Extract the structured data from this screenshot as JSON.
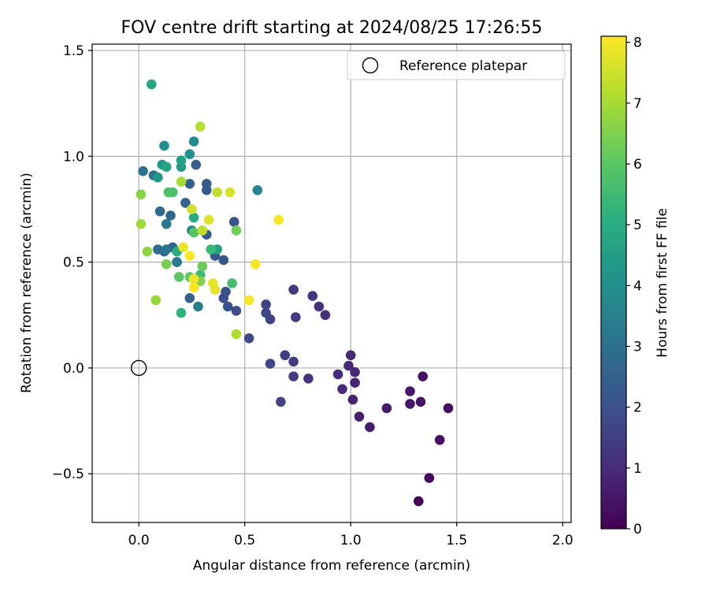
{
  "chart_data": {
    "type": "scatter",
    "title": "FOV centre drift starting at 2024/08/25 17:26:55",
    "xlabel": "Angular distance from reference (arcmin)",
    "ylabel": "Rotation from reference (arcmin)",
    "xlim": [
      -0.22,
      2.04
    ],
    "ylim": [
      -0.73,
      1.53
    ],
    "xticks": [
      0.0,
      0.5,
      1.0,
      1.5,
      2.0
    ],
    "xtick_labels": [
      "0.0",
      "0.5",
      "1.0",
      "1.5",
      "2.0"
    ],
    "yticks": [
      -0.5,
      0.0,
      0.5,
      1.0,
      1.5
    ],
    "ytick_labels": [
      "−0.5",
      "0.0",
      "0.5",
      "1.0",
      "1.5"
    ],
    "grid": true,
    "legend": {
      "location": "top-right",
      "entries": [
        "Reference platepar"
      ]
    },
    "reference_point": {
      "x": 0.0,
      "y": 0.0,
      "marker": "open-circle"
    },
    "colorbar": {
      "label": "Hours from first FF file",
      "colormap": "viridis",
      "range": [
        0,
        8.1
      ],
      "ticks": [
        0,
        1,
        2,
        3,
        4,
        5,
        6,
        7,
        8
      ],
      "tick_labels": [
        "0",
        "1",
        "2",
        "3",
        "4",
        "5",
        "6",
        "7",
        "8"
      ]
    },
    "points": [
      [
        1.32,
        -0.63,
        0.1
      ],
      [
        1.37,
        -0.52,
        0.2
      ],
      [
        1.42,
        -0.34,
        0.3
      ],
      [
        1.46,
        -0.19,
        0.35
      ],
      [
        1.34,
        -0.04,
        0.4
      ],
      [
        1.33,
        -0.16,
        0.45
      ],
      [
        1.28,
        -0.17,
        0.5
      ],
      [
        1.28,
        -0.11,
        0.55
      ],
      [
        1.17,
        -0.19,
        0.6
      ],
      [
        1.09,
        -0.28,
        0.65
      ],
      [
        1.04,
        -0.23,
        0.7
      ],
      [
        1.01,
        -0.15,
        0.75
      ],
      [
        1.02,
        -0.07,
        0.8
      ],
      [
        1.02,
        -0.02,
        0.85
      ],
      [
        1.0,
        0.06,
        0.9
      ],
      [
        0.99,
        0.01,
        0.95
      ],
      [
        0.96,
        -0.1,
        1.0
      ],
      [
        0.94,
        -0.03,
        1.05
      ],
      [
        0.88,
        0.25,
        1.1
      ],
      [
        0.85,
        0.29,
        1.15
      ],
      [
        0.82,
        0.34,
        1.2
      ],
      [
        0.8,
        -0.05,
        1.25
      ],
      [
        0.74,
        0.24,
        1.3
      ],
      [
        0.73,
        0.37,
        1.35
      ],
      [
        0.73,
        0.03,
        1.4
      ],
      [
        0.73,
        -0.04,
        1.45
      ],
      [
        0.69,
        0.06,
        1.5
      ],
      [
        0.67,
        -0.16,
        1.55
      ],
      [
        0.62,
        0.23,
        1.6
      ],
      [
        0.6,
        0.3,
        1.65
      ],
      [
        0.6,
        0.26,
        1.7
      ],
      [
        0.62,
        0.02,
        1.75
      ],
      [
        0.52,
        0.14,
        1.8
      ],
      [
        0.46,
        0.27,
        1.9
      ],
      [
        0.4,
        0.33,
        1.95
      ],
      [
        0.41,
        0.36,
        2.0
      ],
      [
        0.42,
        0.29,
        2.05
      ],
      [
        0.45,
        0.69,
        2.1
      ],
      [
        0.4,
        0.51,
        2.15
      ],
      [
        0.36,
        0.53,
        2.2
      ],
      [
        0.32,
        0.63,
        2.25
      ],
      [
        0.32,
        0.84,
        2.3
      ],
      [
        0.32,
        0.87,
        2.35
      ],
      [
        0.27,
        0.96,
        2.4
      ],
      [
        0.24,
        0.33,
        2.45
      ],
      [
        0.24,
        0.87,
        2.5
      ],
      [
        0.22,
        0.78,
        2.55
      ],
      [
        0.18,
        0.5,
        2.6
      ],
      [
        0.16,
        0.57,
        2.65
      ],
      [
        0.15,
        0.72,
        2.7
      ],
      [
        0.12,
        0.55,
        2.75
      ],
      [
        0.1,
        0.74,
        2.8
      ],
      [
        0.09,
        0.56,
        2.85
      ],
      [
        0.07,
        0.91,
        2.9
      ],
      [
        0.02,
        0.93,
        3.0
      ],
      [
        0.13,
        0.56,
        3.1
      ],
      [
        0.13,
        0.68,
        3.2
      ],
      [
        0.18,
        0.5,
        3.3
      ],
      [
        0.28,
        0.29,
        3.4
      ],
      [
        0.25,
        0.65,
        3.5
      ],
      [
        0.56,
        0.84,
        3.7
      ],
      [
        0.26,
        1.07,
        3.9
      ],
      [
        0.12,
        1.05,
        4.0
      ],
      [
        0.24,
        1.01,
        4.1
      ],
      [
        0.09,
        0.9,
        4.2
      ],
      [
        0.11,
        0.96,
        4.3
      ],
      [
        0.2,
        0.95,
        4.4
      ],
      [
        0.37,
        0.56,
        4.5
      ],
      [
        0.2,
        0.98,
        4.6
      ],
      [
        0.13,
        0.95,
        4.7
      ],
      [
        0.06,
        1.34,
        4.8
      ],
      [
        0.26,
        0.71,
        4.9
      ],
      [
        0.18,
        0.55,
        5.0
      ],
      [
        0.2,
        0.26,
        5.2
      ],
      [
        0.34,
        0.56,
        5.4
      ],
      [
        0.29,
        0.44,
        5.5
      ],
      [
        0.44,
        0.4,
        5.6
      ],
      [
        0.16,
        0.83,
        5.7
      ],
      [
        0.14,
        0.83,
        5.8
      ],
      [
        0.26,
        0.64,
        5.9
      ],
      [
        0.19,
        0.43,
        6.0
      ],
      [
        0.24,
        0.43,
        6.1
      ],
      [
        0.3,
        0.48,
        6.2
      ],
      [
        0.46,
        0.65,
        6.3
      ],
      [
        0.13,
        0.49,
        6.4
      ],
      [
        0.29,
        0.41,
        6.5
      ],
      [
        0.01,
        0.82,
        6.6
      ],
      [
        0.04,
        0.55,
        6.7
      ],
      [
        0.08,
        0.32,
        6.8
      ],
      [
        0.01,
        0.68,
        6.9
      ],
      [
        0.2,
        0.88,
        7.0
      ],
      [
        0.46,
        0.16,
        7.1
      ],
      [
        0.29,
        1.14,
        7.2
      ],
      [
        0.3,
        0.65,
        7.3
      ],
      [
        0.37,
        0.83,
        7.4
      ],
      [
        0.25,
        0.75,
        7.5
      ],
      [
        0.43,
        0.83,
        7.6
      ],
      [
        0.33,
        0.7,
        7.7
      ],
      [
        0.36,
        0.37,
        7.8
      ],
      [
        0.35,
        0.4,
        7.8
      ],
      [
        0.21,
        0.57,
        7.9
      ],
      [
        0.26,
        0.42,
        7.9
      ],
      [
        0.52,
        0.32,
        8.0
      ],
      [
        0.55,
        0.49,
        8.0
      ],
      [
        0.66,
        0.7,
        8.05
      ],
      [
        0.24,
        0.53,
        8.05
      ],
      [
        0.26,
        0.38,
        8.1
      ]
    ]
  }
}
